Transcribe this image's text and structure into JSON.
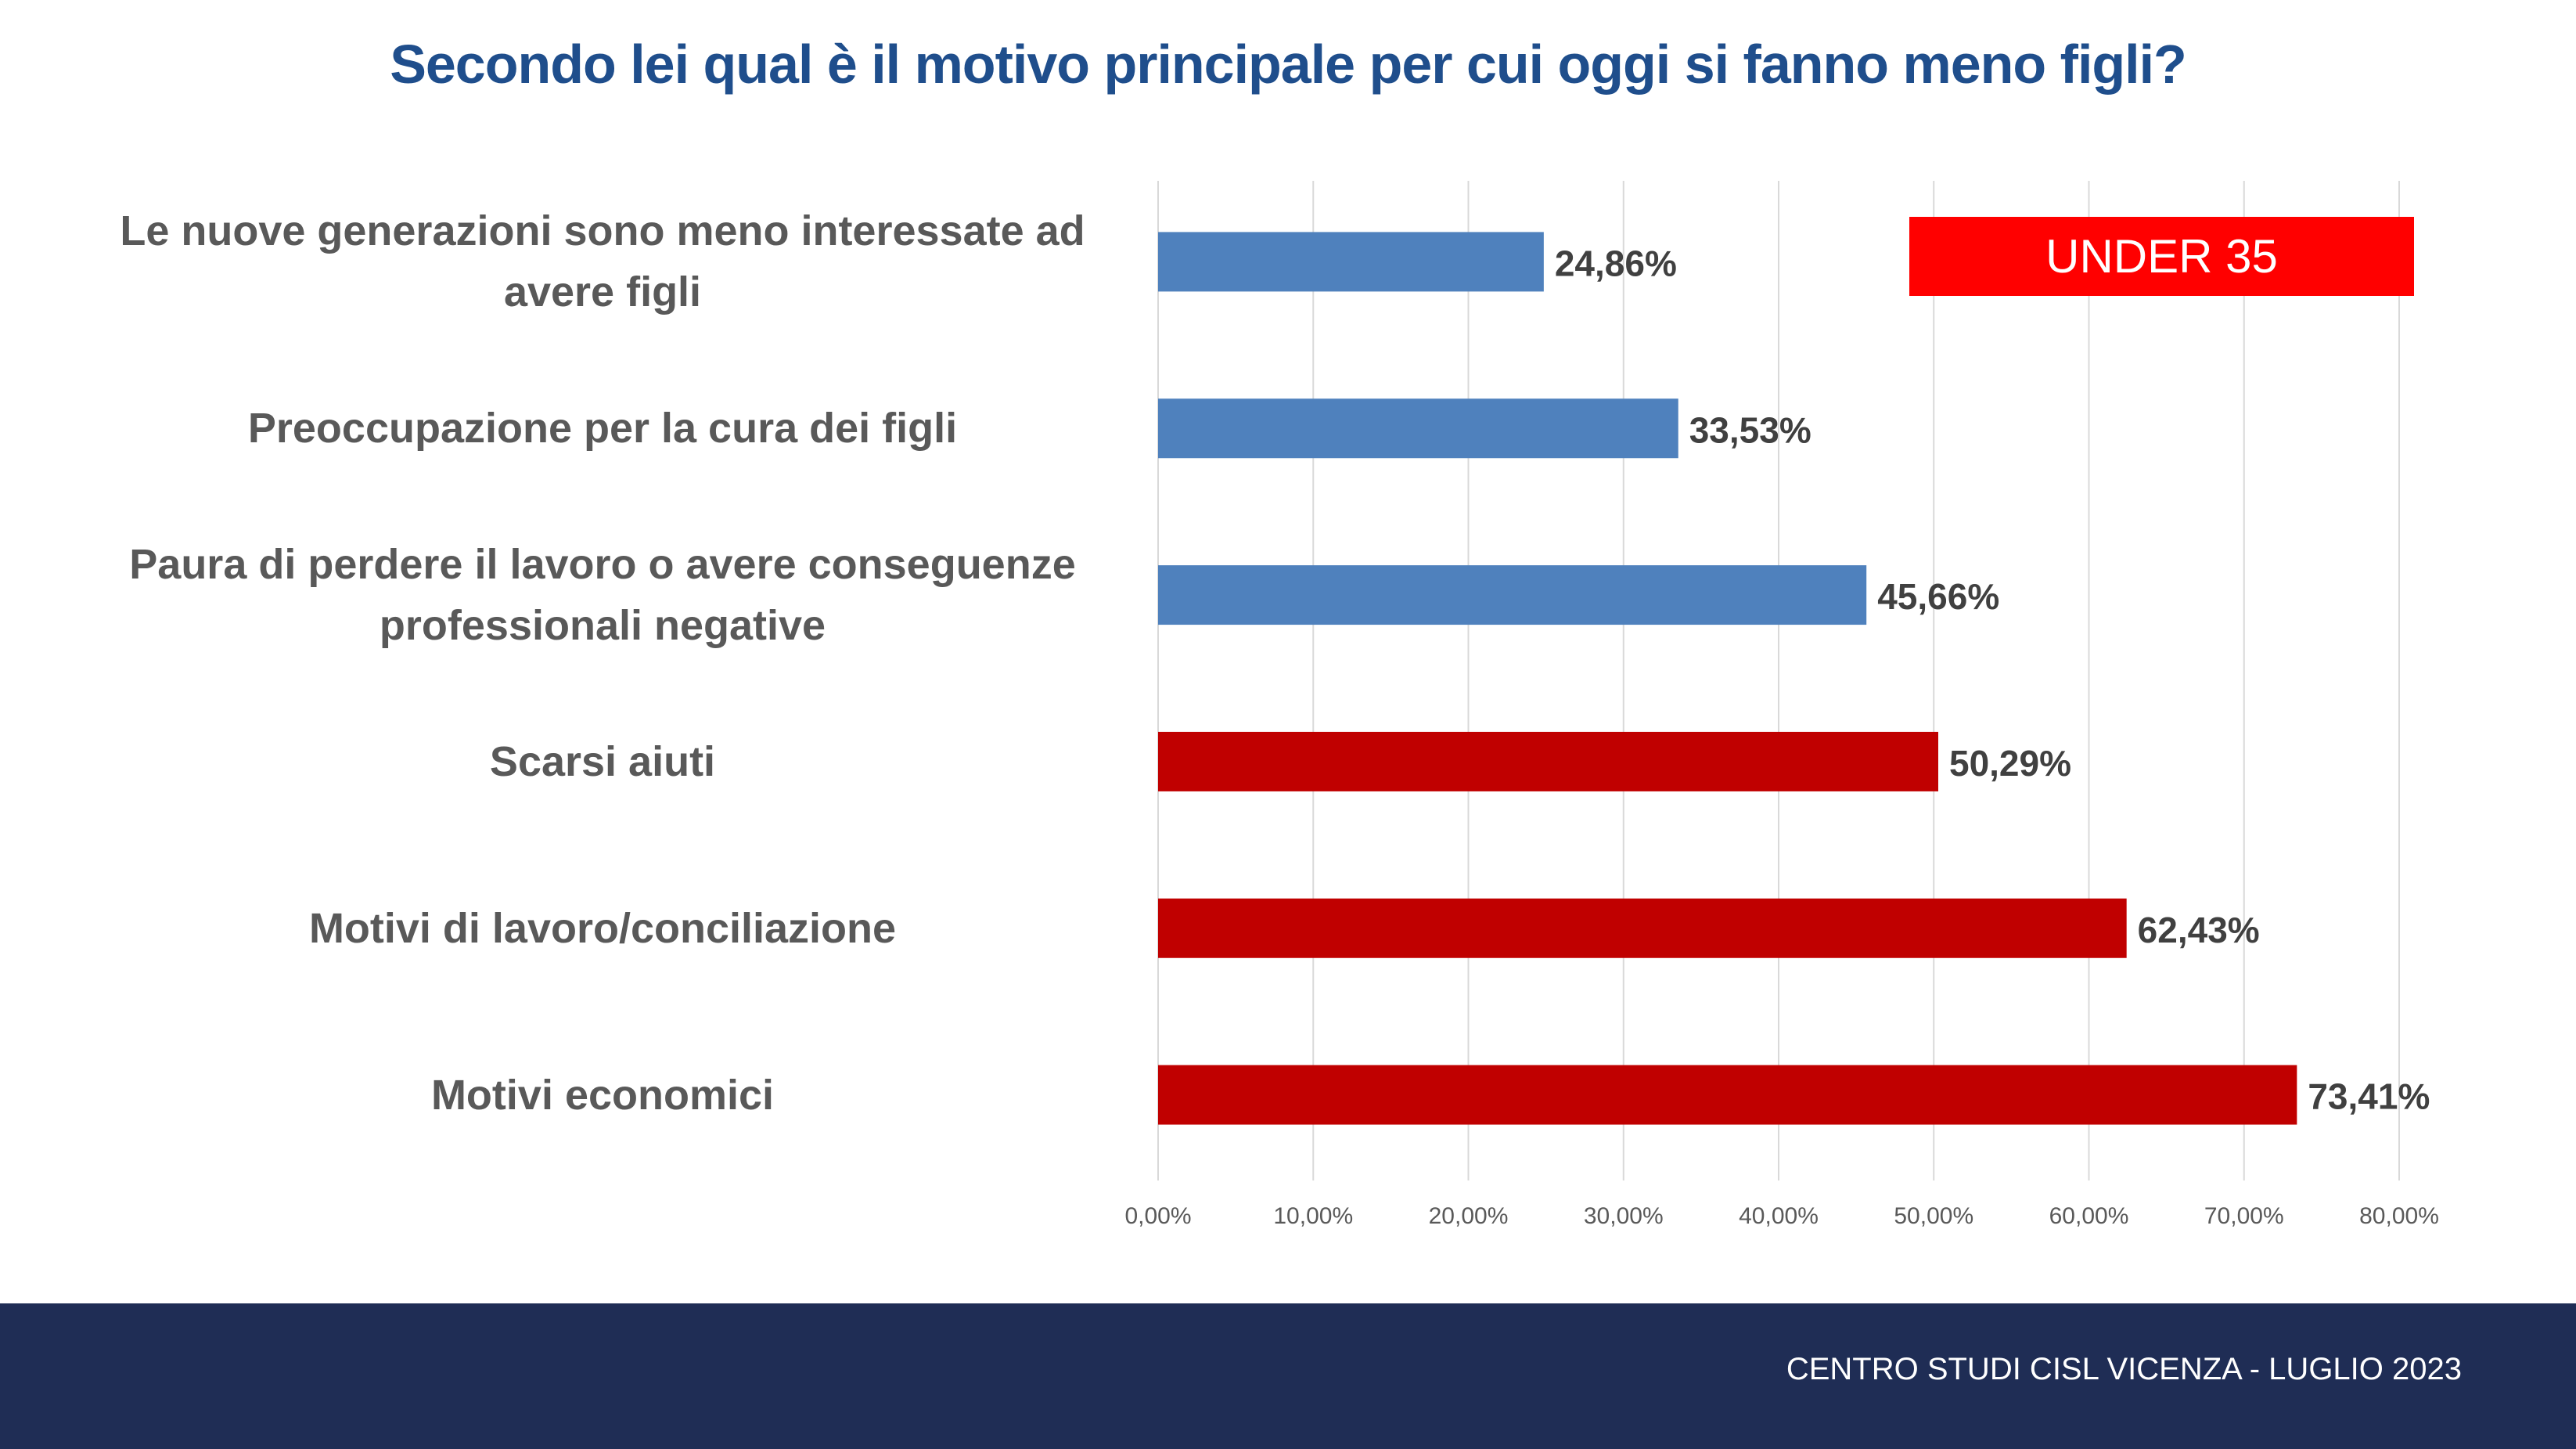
{
  "title": "Secondo lei qual è il motivo principale per cui oggi si fanno meno figli?",
  "badge": "UNDER 35",
  "footer": "CENTRO STUDI CISL VICENZA  - LUGLIO 2023",
  "colors": {
    "blue": "#4F81BD",
    "red": "#C00000",
    "badge": "#FF0000",
    "footer": "#1F2D55",
    "title": "#1F4E8C"
  },
  "chart_data": {
    "type": "bar",
    "orientation": "horizontal",
    "title": "Secondo lei qual è il motivo principale per cui oggi si fanno meno figli?",
    "categories": [
      "Le nuove generazioni sono meno interessate ad avere figli",
      "Preoccupazione per la cura dei figli",
      "Paura di perdere il lavoro o avere conseguenze professionali negative",
      "Scarsi aiuti",
      "Motivi di lavoro/conciliazione",
      "Motivi economici"
    ],
    "values": [
      24.86,
      33.53,
      45.66,
      50.29,
      62.43,
      73.41
    ],
    "value_labels": [
      "24,86%",
      "33,53%",
      "45,66%",
      "50,29%",
      "62,43%",
      "73,41%"
    ],
    "bar_colors": [
      "#4F81BD",
      "#4F81BD",
      "#4F81BD",
      "#C00000",
      "#C00000",
      "#C00000"
    ],
    "xlim": [
      0,
      80
    ],
    "ticks": [
      0,
      10,
      20,
      30,
      40,
      50,
      60,
      70,
      80
    ],
    "tick_labels": [
      "0,00%",
      "10,00%",
      "20,00%",
      "30,00%",
      "40,00%",
      "50,00%",
      "60,00%",
      "70,00%",
      "80,00%"
    ],
    "grid": true,
    "legend": "none",
    "annotation": "UNDER 35"
  }
}
